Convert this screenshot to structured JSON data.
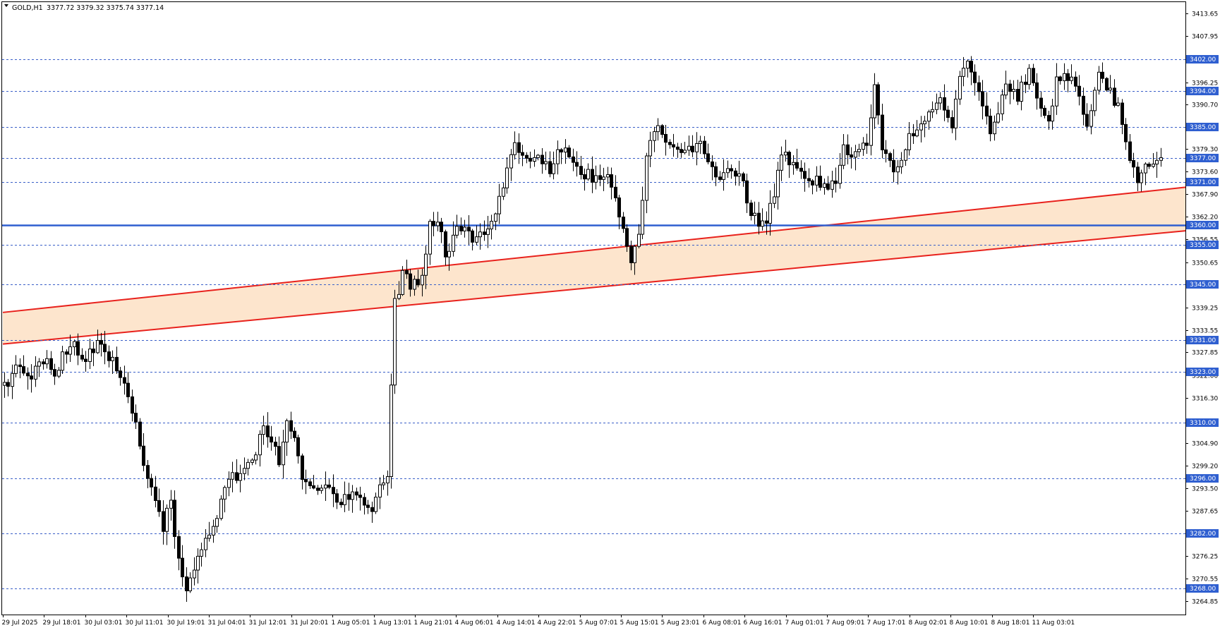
{
  "header": {
    "symbol": "GOLD,H1",
    "ohlc": "3377.72 3379.32 3375.74 3377.14",
    "menu_icon": "triangle-down-icon"
  },
  "chart_data": {
    "type": "candlestick",
    "symbol": "GOLD",
    "timeframe": "H1",
    "ylim": [
      3262.0,
      3416.0
    ],
    "price_ticks": [
      "3413.65",
      "3407.95",
      "3401.95",
      "3396.25",
      "3390.70",
      "3385.00",
      "3379.30",
      "3373.60",
      "3367.90",
      "3362.20",
      "3356.55",
      "3350.65",
      "3345.25",
      "3339.25",
      "3333.55",
      "3327.85",
      "3322.00",
      "3316.30",
      "3310.60",
      "3304.90",
      "3299.20",
      "3293.50",
      "3287.65",
      "3282.00",
      "3276.25",
      "3270.55",
      "3264.85"
    ],
    "time_labels": [
      "29 Jul 2025",
      "29 Jul 18:01",
      "30 Jul 03:01",
      "30 Jul 11:01",
      "30 Jul 19:01",
      "31 Jul 04:01",
      "31 Jul 12:01",
      "31 Jul 20:01",
      "1 Aug 05:01",
      "1 Aug 13:01",
      "1 Aug 21:01",
      "4 Aug 06:01",
      "4 Aug 14:01",
      "4 Aug 22:01",
      "5 Aug 07:01",
      "5 Aug 15:01",
      "5 Aug 23:01",
      "6 Aug 08:01",
      "6 Aug 16:01",
      "7 Aug 01:01",
      "7 Aug 09:01",
      "7 Aug 17:01",
      "8 Aug 02:01",
      "8 Aug 10:01",
      "8 Aug 18:01",
      "11 Aug 03:01"
    ],
    "horizontal_levels": [
      {
        "price": 3402.0,
        "label": "3402.00"
      },
      {
        "price": 3394.0,
        "label": "3394.00"
      },
      {
        "price": 3385.0,
        "label": "3385.00"
      },
      {
        "price": 3377.0,
        "label": "3377.00"
      },
      {
        "price": 3371.0,
        "label": "3371.00"
      },
      {
        "price": 3360.0,
        "label": "3360.00",
        "solid": true
      },
      {
        "price": 3355.0,
        "label": "3355.00"
      },
      {
        "price": 3345.0,
        "label": "3345.00"
      },
      {
        "price": 3331.0,
        "label": "3331.00"
      },
      {
        "price": 3323.0,
        "label": "3323.00"
      },
      {
        "price": 3310.0,
        "label": "3310.00"
      },
      {
        "price": 3296.0,
        "label": "3296.00"
      },
      {
        "price": 3282.0,
        "label": "3282.00"
      },
      {
        "price": 3268.0,
        "label": "3268.00"
      }
    ],
    "channel": {
      "upper": {
        "start": [
          "29 Jul 2025",
          3338.0
        ],
        "end": [
          "11 Aug 07:01",
          3369.5
        ]
      },
      "lower": {
        "start": [
          "29 Jul 2025",
          3330.0
        ],
        "end": [
          "11 Aug 07:01",
          3358.5
        ]
      }
    },
    "waypoints": [
      [
        0,
        3318
      ],
      [
        5,
        3325
      ],
      [
        8,
        3320
      ],
      [
        10,
        3327
      ],
      [
        14,
        3323
      ],
      [
        18,
        3330
      ],
      [
        22,
        3326
      ],
      [
        25,
        3330
      ],
      [
        28,
        3327
      ],
      [
        31,
        3322
      ],
      [
        34,
        3313
      ],
      [
        38,
        3296
      ],
      [
        42,
        3284
      ],
      [
        44,
        3290
      ],
      [
        46,
        3275
      ],
      [
        48,
        3269
      ],
      [
        50,
        3272
      ],
      [
        53,
        3280
      ],
      [
        56,
        3286
      ],
      [
        59,
        3296
      ],
      [
        62,
        3297
      ],
      [
        65,
        3300
      ],
      [
        68,
        3309
      ],
      [
        70,
        3306
      ],
      [
        72,
        3300
      ],
      [
        74,
        3309
      ],
      [
        76,
        3305
      ],
      [
        78,
        3296
      ],
      [
        81,
        3294
      ],
      [
        84,
        3294
      ],
      [
        87,
        3290
      ],
      [
        90,
        3292
      ],
      [
        93,
        3292
      ],
      [
        96,
        3288
      ],
      [
        98,
        3294
      ],
      [
        100,
        3296
      ],
      [
        102,
        3340
      ],
      [
        104,
        3348
      ],
      [
        106,
        3345
      ],
      [
        109,
        3347
      ],
      [
        111,
        3360
      ],
      [
        113,
        3362
      ],
      [
        115,
        3352
      ],
      [
        117,
        3358
      ],
      [
        120,
        3360
      ],
      [
        123,
        3356
      ],
      [
        126,
        3360
      ],
      [
        128,
        3362
      ],
      [
        130,
        3370
      ],
      [
        133,
        3382
      ],
      [
        136,
        3376
      ],
      [
        139,
        3378
      ],
      [
        142,
        3374
      ],
      [
        145,
        3380
      ],
      [
        148,
        3375
      ],
      [
        151,
        3373
      ],
      [
        154,
        3372
      ],
      [
        157,
        3371
      ],
      [
        159,
        3368
      ],
      [
        161,
        3358
      ],
      [
        163,
        3352
      ],
      [
        165,
        3358
      ],
      [
        167,
        3377
      ],
      [
        169,
        3385
      ],
      [
        171,
        3383
      ],
      [
        174,
        3380
      ],
      [
        177,
        3378
      ],
      [
        180,
        3381
      ],
      [
        183,
        3376
      ],
      [
        186,
        3372
      ],
      [
        189,
        3374
      ],
      [
        192,
        3370
      ],
      [
        194,
        3364
      ],
      [
        196,
        3360
      ],
      [
        198,
        3362
      ],
      [
        200,
        3367
      ],
      [
        202,
        3378
      ],
      [
        205,
        3376
      ],
      [
        208,
        3373
      ],
      [
        211,
        3371
      ],
      [
        214,
        3369
      ],
      [
        216,
        3372
      ],
      [
        218,
        3380
      ],
      [
        221,
        3378
      ],
      [
        224,
        3382
      ],
      [
        226,
        3395
      ],
      [
        228,
        3380
      ],
      [
        231,
        3374
      ],
      [
        234,
        3380
      ],
      [
        237,
        3385
      ],
      [
        240,
        3388
      ],
      [
        243,
        3392
      ],
      [
        246,
        3386
      ],
      [
        248,
        3398
      ],
      [
        250,
        3403
      ],
      [
        252,
        3396
      ],
      [
        254,
        3391
      ],
      [
        256,
        3384
      ],
      [
        258,
        3389
      ],
      [
        260,
        3396
      ],
      [
        263,
        3393
      ],
      [
        266,
        3399
      ],
      [
        269,
        3390
      ],
      [
        271,
        3386
      ],
      [
        273,
        3396
      ],
      [
        276,
        3398
      ],
      [
        279,
        3392
      ],
      [
        281,
        3384
      ],
      [
        284,
        3398
      ],
      [
        287,
        3394
      ],
      [
        290,
        3386
      ],
      [
        292,
        3375
      ],
      [
        294,
        3372
      ],
      [
        296,
        3376
      ],
      [
        298,
        3376
      ],
      [
        299,
        3377.14
      ]
    ]
  }
}
